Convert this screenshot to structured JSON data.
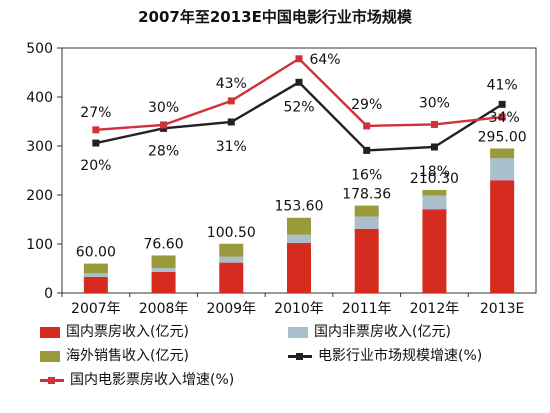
{
  "chart_data": {
    "type": "bar",
    "title": "2007年至2013E中国电影行业市场规模",
    "categories": [
      "2007年",
      "2008年",
      "2009年",
      "2010年",
      "2011年",
      "2012年",
      "2013E"
    ],
    "ylim": [
      0,
      500
    ],
    "yticks": [
      0,
      100,
      200,
      300,
      400,
      500
    ],
    "grid": false,
    "legend_position": "bottom",
    "stacked_series": [
      {
        "name": "国内票房收入(亿元)",
        "color": "#d62c1f",
        "values": [
          33,
          43,
          62,
          102,
          131,
          171,
          230
        ]
      },
      {
        "name": "国内非票房收入(亿元)",
        "color": "#a9bfcc",
        "values": [
          7,
          8,
          12,
          17,
          25,
          28,
          45
        ]
      },
      {
        "name": "海外销售收入(亿元)",
        "color": "#9a9a3c",
        "values": [
          20,
          25.6,
          26.5,
          34.6,
          22.36,
          11.3,
          20
        ]
      }
    ],
    "totals": [
      60.0,
      76.6,
      100.5,
      153.6,
      178.36,
      210.3,
      295.0
    ],
    "total_labels": [
      "60.00",
      "76.60",
      "100.50",
      "153.60",
      "178.36",
      "210.30",
      "295.00"
    ],
    "line_series": [
      {
        "name": "电影行业市场规模增速(%)",
        "color": "#222222",
        "marker": "square",
        "plot_values": [
          306,
          336,
          349,
          430,
          291,
          298,
          385
        ],
        "labels": [
          "20%",
          "28%",
          "31%",
          "52%",
          "16%",
          "18%",
          "41%"
        ]
      },
      {
        "name": "国内电影票房收入增速(%)",
        "color": "#d0323a",
        "marker": "square",
        "plot_values": [
          333,
          343,
          392,
          478,
          341,
          344,
          359
        ],
        "labels": [
          "27%",
          "30%",
          "43%",
          "64%",
          "29%",
          "30%",
          "34%"
        ]
      }
    ]
  },
  "legend": {
    "items": [
      {
        "label": "国内票房收入(亿元)",
        "color": "#d62c1f",
        "kind": "box"
      },
      {
        "label": "国内非票房收入(亿元)",
        "color": "#a9bfcc",
        "kind": "box"
      },
      {
        "label": "海外销售收入(亿元)",
        "color": "#9a9a3c",
        "kind": "box"
      },
      {
        "label": "电影行业市场规模增速(%)",
        "color": "#222222",
        "kind": "line"
      },
      {
        "label": "国内电影票房收入增速(%)",
        "color": "#d0323a",
        "kind": "line"
      }
    ]
  }
}
